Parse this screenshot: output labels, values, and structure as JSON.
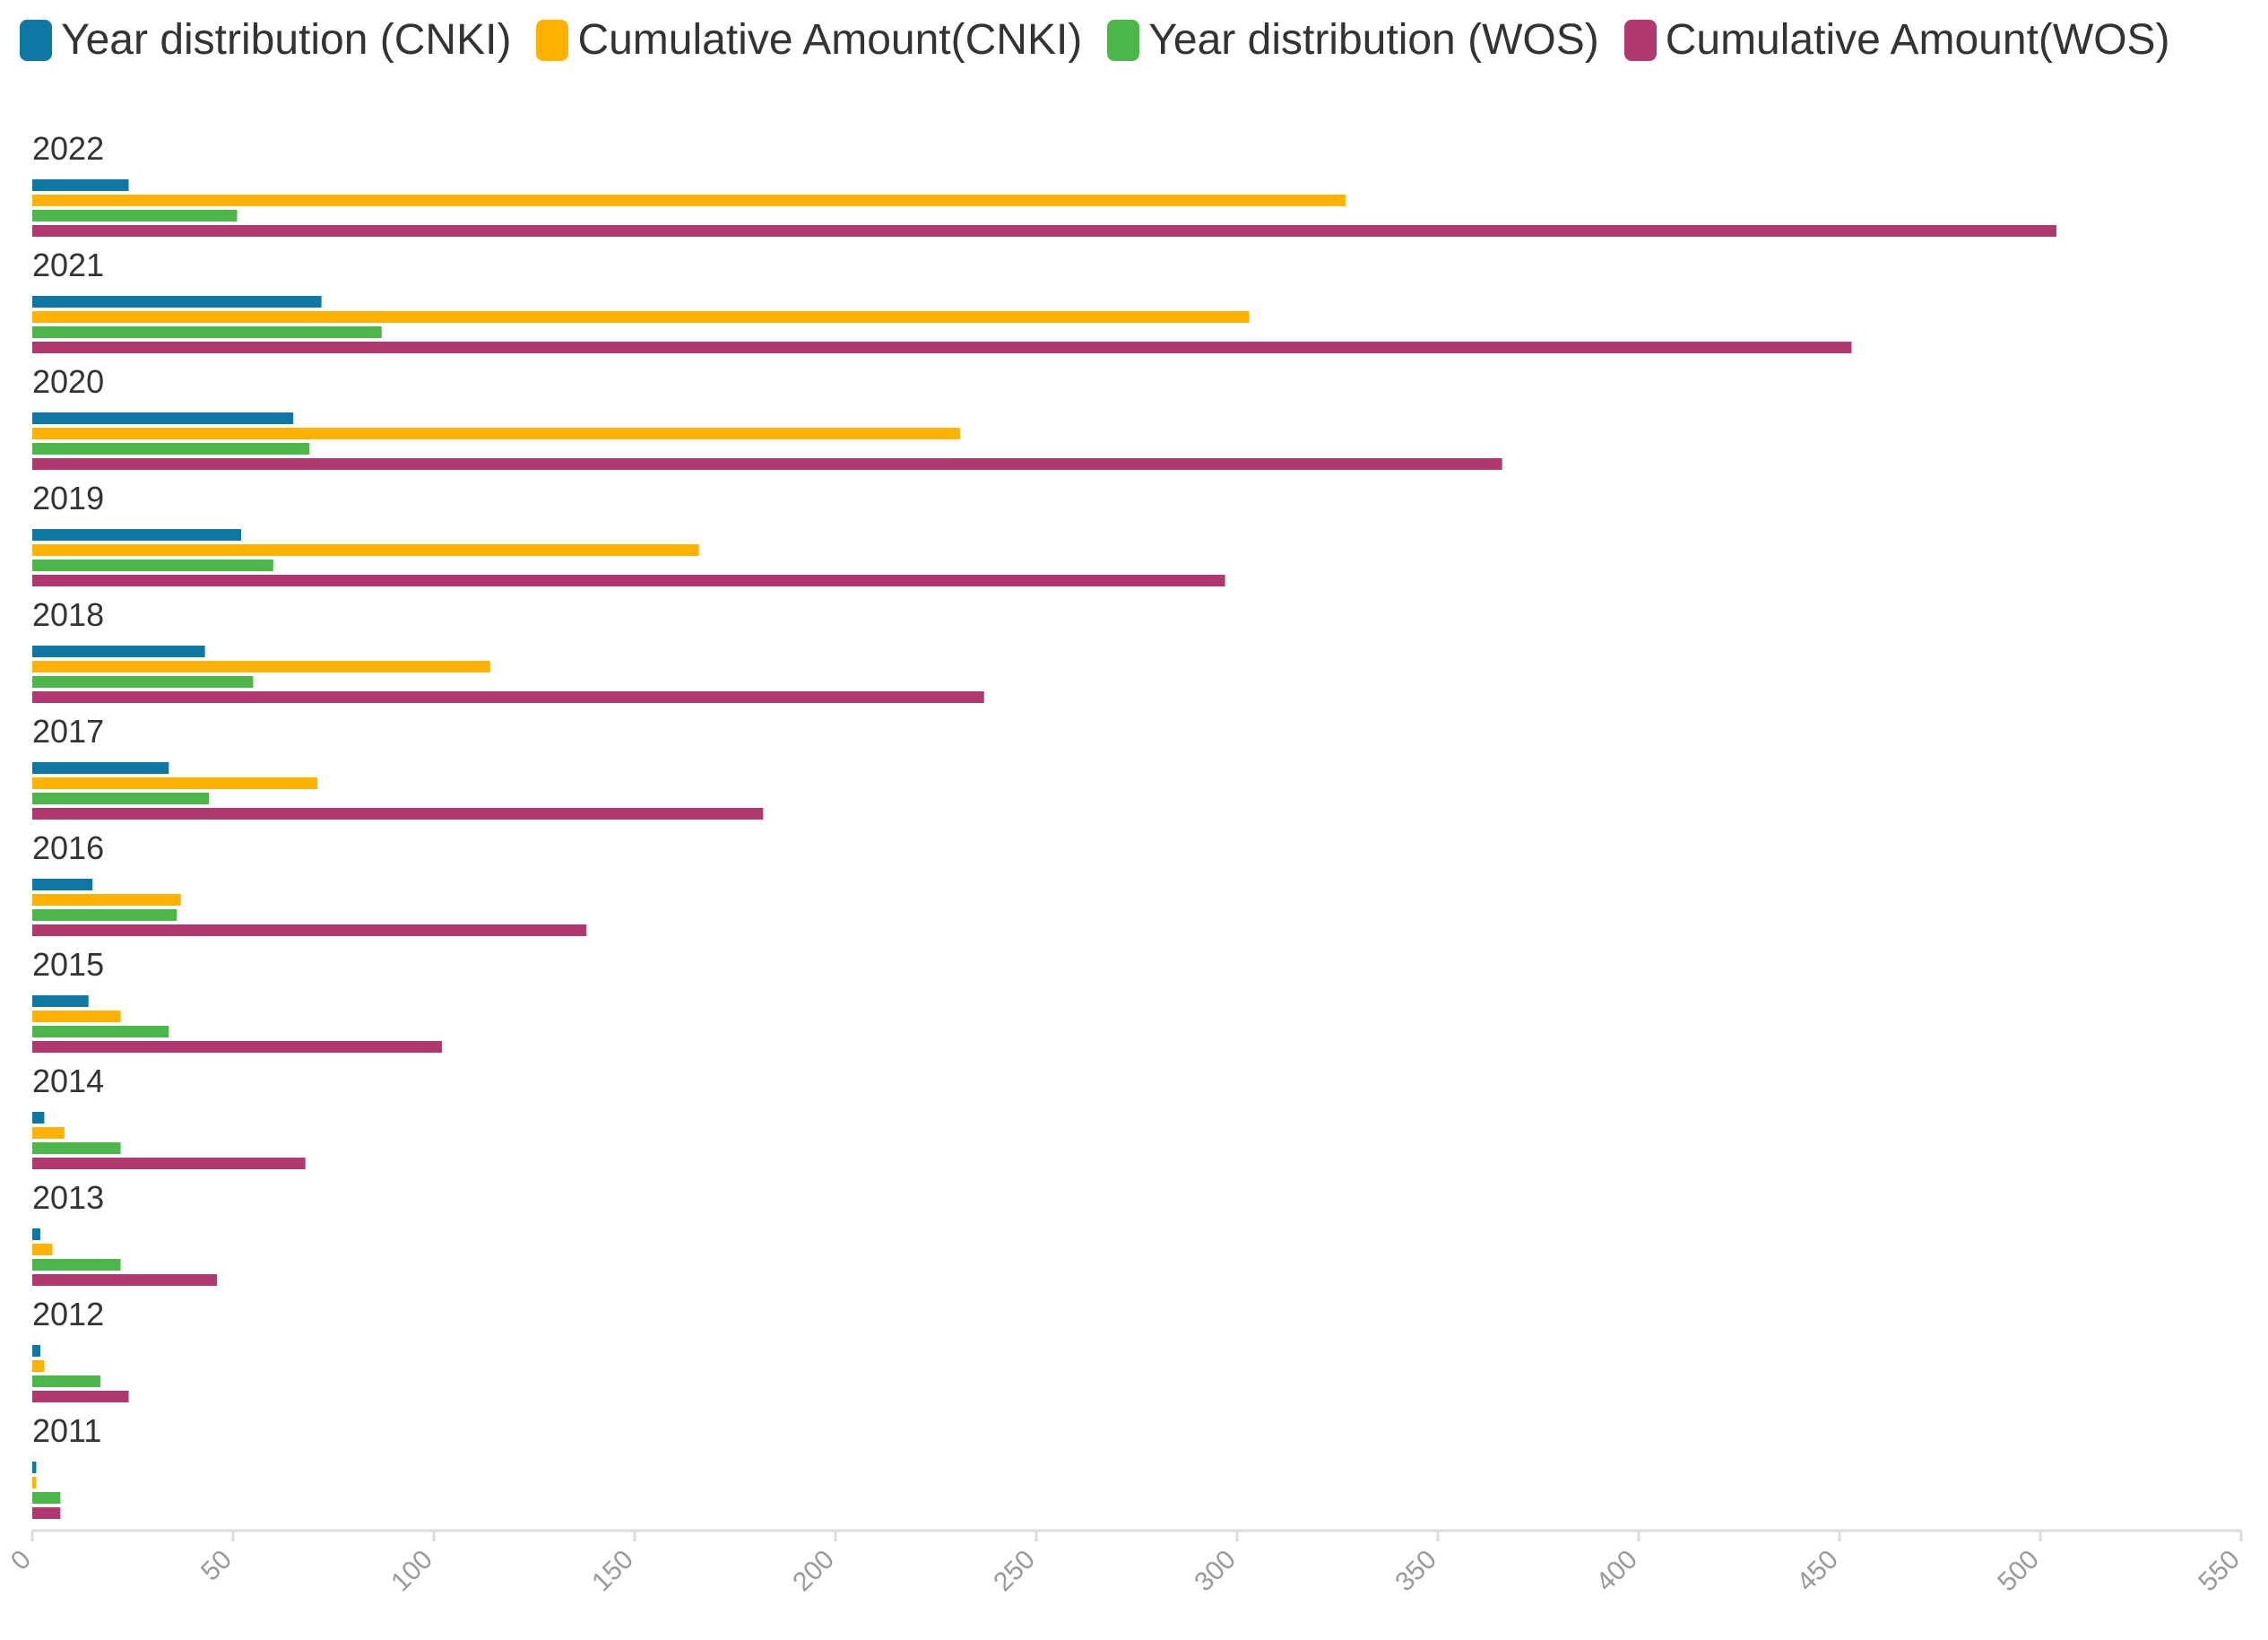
{
  "chart_data": {
    "type": "bar",
    "orientation": "horizontal",
    "title": "",
    "xlabel": "",
    "ylabel": "",
    "xlim": [
      0,
      550
    ],
    "x_ticks": [
      "0",
      "50",
      "100",
      "150",
      "200",
      "250",
      "300",
      "350",
      "400",
      "450",
      "500",
      "550"
    ],
    "grid": false,
    "legend_position": "top-left",
    "categories": [
      "2022",
      "2021",
      "2020",
      "2019",
      "2018",
      "2017",
      "2016",
      "2015",
      "2014",
      "2013",
      "2012",
      "2011"
    ],
    "series": [
      {
        "name": "Year distribution (CNKI)",
        "color": "#0f77a3",
        "values": [
          24,
          72,
          65,
          52,
          43,
          34,
          15,
          14,
          3,
          2,
          2,
          1
        ]
      },
      {
        "name": "Cumulative Amount(CNKI)",
        "color": "#ffb200",
        "values": [
          327,
          303,
          231,
          166,
          114,
          71,
          37,
          22,
          8,
          5,
          3,
          1
        ]
      },
      {
        "name": "Year distribution (WOS)",
        "color": "#4cb649",
        "values": [
          51,
          87,
          69,
          60,
          55,
          44,
          36,
          34,
          22,
          22,
          17,
          7
        ]
      },
      {
        "name": "Cumulative Amount(WOS)",
        "color": "#b0386f",
        "values": [
          504,
          453,
          366,
          297,
          237,
          182,
          138,
          102,
          68,
          46,
          24,
          7
        ]
      }
    ]
  }
}
